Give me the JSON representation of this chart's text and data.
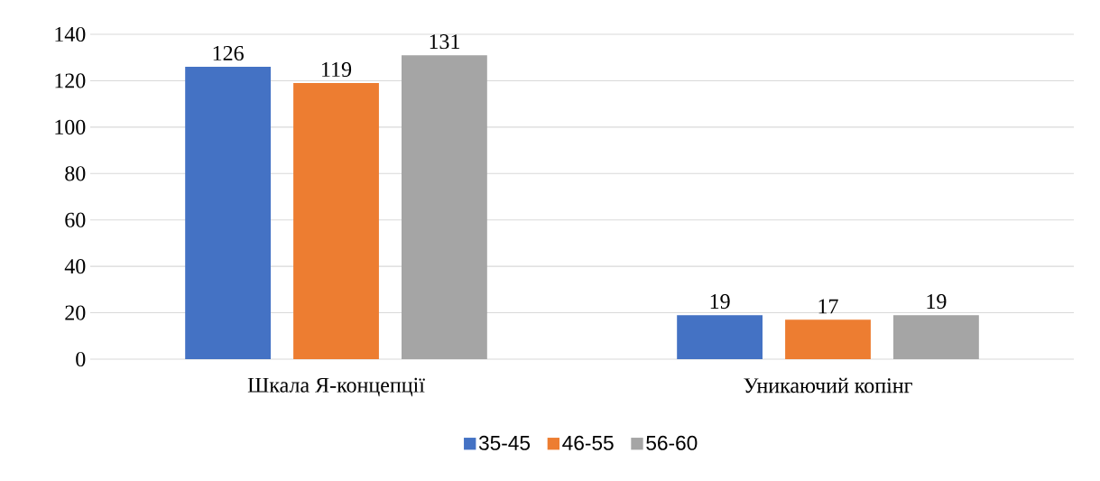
{
  "chart_data": {
    "type": "bar",
    "categories": [
      "Шкала Я-концепції",
      "Уникаючий копінг"
    ],
    "series": [
      {
        "name": "35-45",
        "color": "#4472c4",
        "values": [
          126,
          19
        ]
      },
      {
        "name": "46-55",
        "color": "#ed7d31",
        "values": [
          119,
          17
        ]
      },
      {
        "name": "56-60",
        "color": "#a5a5a5",
        "values": [
          131,
          19
        ]
      }
    ],
    "ylim": [
      0,
      140
    ],
    "yticks": [
      0,
      20,
      40,
      60,
      80,
      100,
      120,
      140
    ],
    "grid": "y",
    "legend": "bottom",
    "data_labels": true
  }
}
